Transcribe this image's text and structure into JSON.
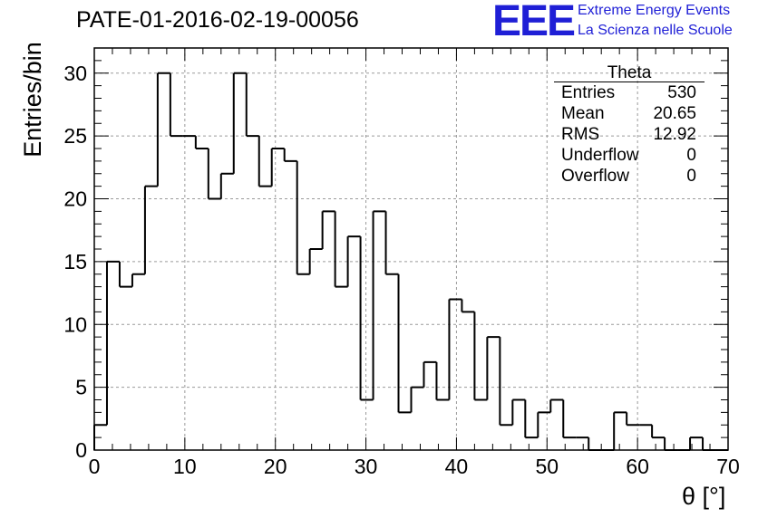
{
  "title": "PATE-01-2016-02-19-00056",
  "logo": {
    "mark": "EEE",
    "line1": "Extreme Energy Events",
    "line2": "La Scienza nelle Scuole",
    "color": "#1f1fd6"
  },
  "stats": {
    "title": "Theta",
    "rows": [
      {
        "label": "Entries",
        "value": "530"
      },
      {
        "label": "Mean",
        "value": "20.65"
      },
      {
        "label": "RMS",
        "value": "12.92"
      },
      {
        "label": "Underflow",
        "value": "0"
      },
      {
        "label": "Overflow",
        "value": "0"
      }
    ]
  },
  "chart_data": {
    "type": "bar",
    "style": "step-histogram",
    "bin_width": 1.4,
    "xlim": [
      0,
      70
    ],
    "ylim": [
      0,
      32
    ],
    "xlabel": "θ [°]",
    "ylabel": "Entries/bin",
    "x_ticks": [
      0,
      10,
      20,
      30,
      40,
      50,
      60,
      70
    ],
    "y_ticks": [
      0,
      5,
      10,
      15,
      20,
      25,
      30
    ],
    "grid": true,
    "values": [
      2,
      15,
      13,
      14,
      21,
      30,
      25,
      25,
      24,
      20,
      22,
      30,
      25,
      21,
      24,
      23,
      14,
      16,
      19,
      13,
      17,
      4,
      19,
      14,
      3,
      5,
      7,
      4,
      12,
      11,
      4,
      9,
      2,
      4,
      1,
      3,
      4,
      1,
      1,
      0,
      0,
      3,
      2,
      2,
      1,
      0,
      0,
      1,
      0,
      0
    ]
  }
}
